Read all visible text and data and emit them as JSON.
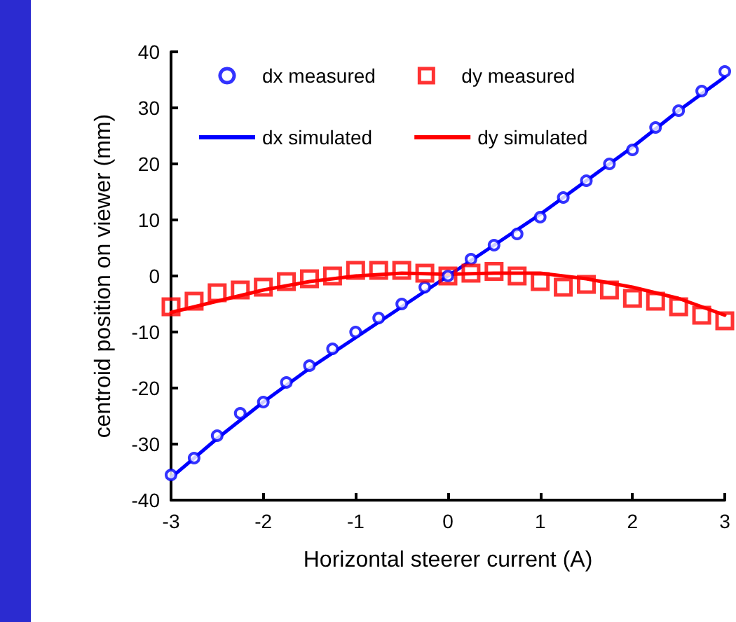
{
  "chart_data": {
    "type": "scatter",
    "xlabel": "Horizontal steerer current (A)",
    "ylabel": "centroid position on viewer (mm)",
    "xlim": [
      -3,
      3
    ],
    "xticks": [
      -3,
      -2,
      -1,
      0,
      1,
      2,
      3
    ],
    "ylim": [
      -40,
      40
    ],
    "yticks": [
      -40,
      -30,
      -20,
      -10,
      0,
      10,
      20,
      30,
      40
    ],
    "grid": false,
    "legend": "top",
    "x": [
      -3,
      -2.75,
      -2.5,
      -2.25,
      -2,
      -1.75,
      -1.5,
      -1.25,
      -1,
      -0.75,
      -0.5,
      -0.25,
      0,
      0.25,
      0.5,
      0.75,
      1,
      1.25,
      1.5,
      1.75,
      2,
      2.25,
      2.5,
      2.75,
      3
    ],
    "series": [
      {
        "name": "dx measured",
        "marker": "circle",
        "color": "#0000ff",
        "values": [
          -35.5,
          -32.5,
          -28.5,
          -24.5,
          -22.5,
          -19,
          -16,
          -13,
          -10,
          -7.5,
          -5,
          -2,
          0,
          3,
          5.5,
          7.5,
          10.5,
          14,
          17,
          20,
          22.5,
          26.5,
          29.5,
          33,
          36.5
        ]
      },
      {
        "name": "dy measured",
        "marker": "square",
        "color": "#ff0000",
        "values": [
          -5.5,
          -4.5,
          -3,
          -2.5,
          -2,
          -1,
          -0.5,
          0,
          1,
          1,
          1,
          0.5,
          0,
          0.5,
          0.8,
          0,
          -1,
          -2,
          -1.5,
          -2.5,
          -4,
          -4.5,
          -5.5,
          -7,
          -8
        ]
      },
      {
        "name": "dx simulated",
        "type": "line",
        "marker": "none",
        "color": "#0000ff",
        "x": [
          -3,
          -2.5,
          -2,
          -1.5,
          -1,
          -0.5,
          0,
          0.5,
          1,
          1.5,
          2,
          2.5,
          3
        ],
        "values": [
          -36,
          -29,
          -22.5,
          -16.5,
          -11,
          -5.5,
          0,
          5.5,
          11,
          17,
          23,
          29.5,
          35.5
        ]
      },
      {
        "name": "dy simulated",
        "type": "line",
        "marker": "none",
        "color": "#ff0000",
        "x": [
          -3,
          -2.5,
          -2,
          -1.5,
          -1,
          -0.5,
          0,
          0.5,
          1,
          1.5,
          2,
          2.5,
          3
        ],
        "values": [
          -6.5,
          -4.5,
          -2.5,
          -1,
          0,
          0.5,
          0.3,
          0.5,
          0.5,
          -0.5,
          -2,
          -4,
          -7
        ]
      }
    ]
  }
}
